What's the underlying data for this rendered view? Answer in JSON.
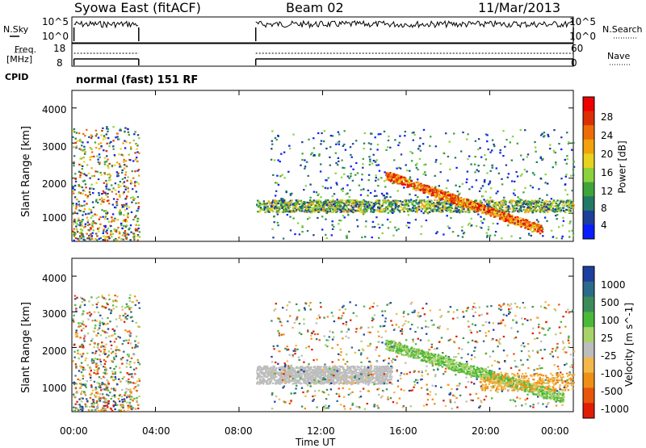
{
  "header": {
    "radar": "Syowa East (fitACF)",
    "beam": "Beam 02",
    "date": "11/Mar/2013"
  },
  "summary": {
    "nsky_label": "N.Sky",
    "freq_label": "Freq.",
    "mhz_label": "[MHz]",
    "cpid_label": "CPID",
    "nsearch_label": "N.Search",
    "nave_label": "Nave",
    "nsky_ticks": [
      "10^5",
      "10^0"
    ],
    "nsearch_ticks": [
      "10^5",
      "10^0"
    ],
    "freq_ticks": [
      "18",
      "8"
    ],
    "nave_ticks": [
      "60",
      "0"
    ],
    "cpid_text": "normal (fast) 151 RF"
  },
  "chart_data": [
    {
      "type": "heatmap",
      "panel": "power",
      "ylabel": "Slant Range [km]",
      "yticks": [
        "1000",
        "2000",
        "3000",
        "4000"
      ],
      "ylim": [
        200,
        4500
      ],
      "xticks": [
        "00:00",
        "04:00",
        "08:00",
        "12:00",
        "16:00",
        "20:00",
        "00:00"
      ],
      "xlim": [
        0,
        24
      ],
      "colorbar": {
        "label": "Power [dB]",
        "ticks": [
          "4",
          "8",
          "12",
          "16",
          "20",
          "24",
          "28"
        ],
        "colors": [
          "#0a1dff",
          "#1d3f9a",
          "#227a64",
          "#3ea53a",
          "#8bd33c",
          "#e8d21e",
          "#f2a20c",
          "#ee6c08",
          "#dc2f05",
          "#ee0000"
        ]
      },
      "features": [
        {
          "name": "early-interval",
          "t": [
            0.0,
            3.2
          ],
          "range": [
            200,
            3400
          ]
        },
        {
          "name": "main-band",
          "t": [
            8.8,
            24.0
          ],
          "range": [
            1100,
            1350
          ]
        },
        {
          "name": "descending-arc",
          "t": [
            15.0,
            22.5
          ],
          "range": [
            400,
            2200
          ]
        }
      ]
    },
    {
      "type": "heatmap",
      "panel": "velocity",
      "ylabel": "Slant Range [km]",
      "yticks": [
        "1000",
        "2000",
        "3000",
        "4000"
      ],
      "ylim": [
        200,
        4500
      ],
      "xticks": [
        "00:00",
        "04:00",
        "08:00",
        "12:00",
        "16:00",
        "20:00",
        "00:00"
      ],
      "xlim": [
        0,
        24
      ],
      "xlabel": "Time UT",
      "colorbar": {
        "label": "Velocity [m s^-1]",
        "ticks": [
          "1000",
          "500",
          "100",
          "25",
          "-25",
          "-100",
          "-500",
          "-1000"
        ],
        "colors": [
          "#1e3fa0",
          "#2b6b8a",
          "#3c8c5a",
          "#4bb83a",
          "#a8d36a",
          "#bdbdbd",
          "#f3b84a",
          "#ef8f14",
          "#e9560a",
          "#e11d05"
        ]
      }
    }
  ]
}
